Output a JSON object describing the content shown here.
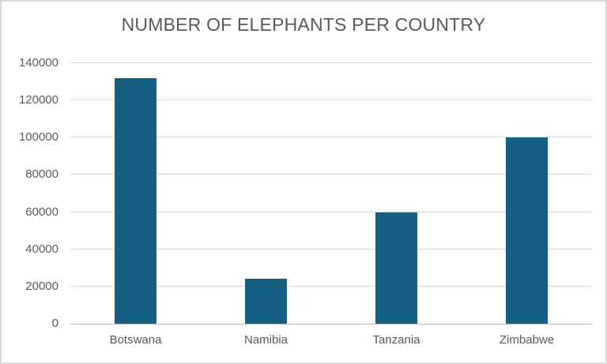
{
  "chart_data": {
    "type": "bar",
    "title": "NUMBER OF ELEPHANTS PER COUNTRY",
    "categories": [
      "Botswana",
      "Namibia",
      "Tanzania",
      "Zimbabwe"
    ],
    "values": [
      132000,
      24000,
      60000,
      100000
    ],
    "xlabel": "",
    "ylabel": "",
    "ylim": [
      0,
      140000
    ],
    "ytick_step": 20000,
    "ytick_labels": [
      "0",
      "20000",
      "40000",
      "60000",
      "80000",
      "100000",
      "120000",
      "140000"
    ],
    "grid": "horizontal",
    "legend": "none",
    "colors": {
      "bar": "#156082",
      "gridline": "#d9d9d9",
      "axis_line": "#bfbfbf",
      "text": "#595959",
      "background": "#ffffff",
      "frame_border": "#d9d9d9"
    }
  }
}
